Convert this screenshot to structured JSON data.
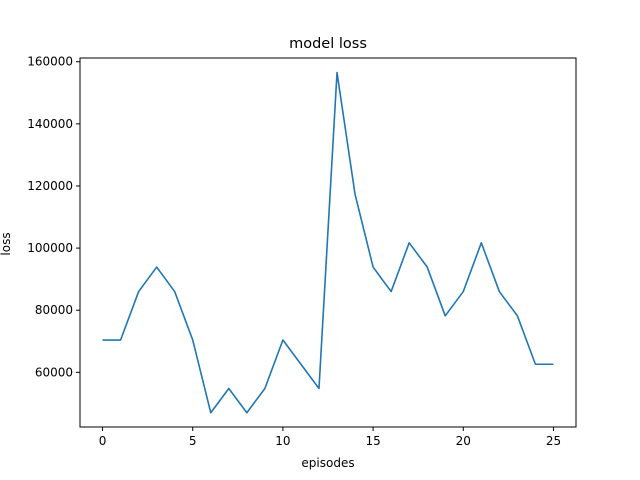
{
  "chart_data": {
    "type": "line",
    "title": "model loss",
    "xlabel": "episodes",
    "ylabel": "loss",
    "xlim": [
      -1.25,
      26.25
    ],
    "ylim": [
      42400,
      161200
    ],
    "xticks": [
      0,
      5,
      10,
      15,
      20,
      25
    ],
    "yticks": [
      60000,
      80000,
      100000,
      120000,
      140000,
      160000
    ],
    "grid": false,
    "series": [
      {
        "color": "#1f77b4",
        "x": [
          0,
          1,
          2,
          3,
          4,
          5,
          6,
          7,
          8,
          9,
          10,
          11,
          12,
          13,
          14,
          15,
          16,
          17,
          18,
          19,
          20,
          21,
          22,
          23,
          24,
          25
        ],
        "y": [
          70400,
          70400,
          86000,
          93900,
          86000,
          70400,
          47000,
          54800,
          47000,
          54800,
          70400,
          62600,
          54800,
          156500,
          117300,
          93900,
          86000,
          101700,
          93900,
          78200,
          86000,
          101700,
          86000,
          78200,
          62600,
          62600
        ]
      }
    ]
  }
}
